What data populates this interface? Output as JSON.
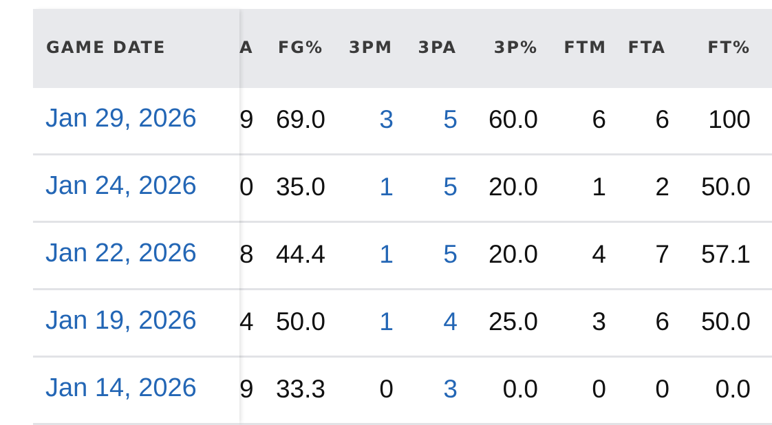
{
  "table": {
    "columns": {
      "game_date": "GAME DATE",
      "partial": "A",
      "fg_pct": "FG%",
      "three_pm": "3PM",
      "three_pa": "3PA",
      "three_pct": "3P%",
      "ftm": "FTM",
      "fta": "FTA",
      "ft_pct": "FT%"
    },
    "rows": [
      {
        "date": "Jan 29, 2026",
        "partial": "9",
        "fg_pct": "69.0",
        "three_pm": "3",
        "three_pa": "5",
        "three_pct": "60.0",
        "ftm": "6",
        "fta": "6",
        "ft_pct": "100"
      },
      {
        "date": "Jan 24, 2026",
        "partial": "0",
        "fg_pct": "35.0",
        "three_pm": "1",
        "three_pa": "5",
        "three_pct": "20.0",
        "ftm": "1",
        "fta": "2",
        "ft_pct": "50.0"
      },
      {
        "date": "Jan 22, 2026",
        "partial": "8",
        "fg_pct": "44.4",
        "three_pm": "1",
        "three_pa": "5",
        "three_pct": "20.0",
        "ftm": "4",
        "fta": "7",
        "ft_pct": "57.1"
      },
      {
        "date": "Jan 19, 2026",
        "partial": "4",
        "fg_pct": "50.0",
        "three_pm": "1",
        "three_pa": "4",
        "three_pct": "25.0",
        "ftm": "3",
        "fta": "6",
        "ft_pct": "50.0"
      },
      {
        "date": "Jan 14, 2026",
        "partial": "9",
        "fg_pct": "33.3",
        "three_pm": "0",
        "three_pa": "3",
        "three_pct": "0.0",
        "ftm": "0",
        "fta": "0",
        "ft_pct": "0.0"
      }
    ]
  },
  "colors": {
    "link": "#2366b5",
    "header_bg": "#e8e9ec",
    "text": "#111111"
  }
}
